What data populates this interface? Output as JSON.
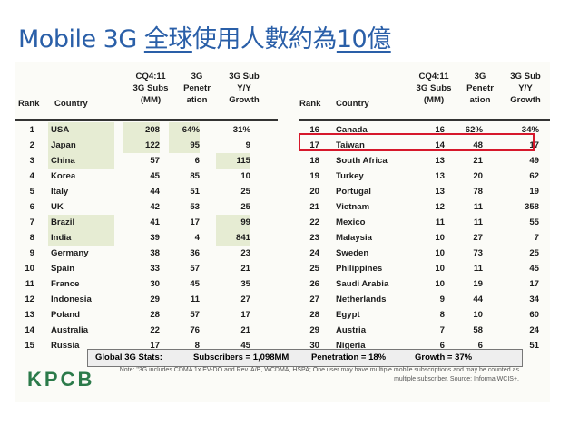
{
  "slide_title": {
    "prefix": "Mobile 3G ",
    "underlined_1": "全球",
    "middle": "使用人數約為",
    "underlined_2": "10億"
  },
  "left_header": {
    "rank": "Rank",
    "country": "Country",
    "subs_1": "CQ4:11",
    "subs_2": "3G Subs",
    "subs_3": "(MM)",
    "pen_1": "3G",
    "pen_2": "Penetr",
    "pen_3": "ation",
    "growth_1": "3G Sub",
    "growth_2": "Y/Y",
    "growth_3": "Growth"
  },
  "right_header": {
    "rank": "Rank",
    "country": "Country",
    "subs_1": "CQ4:11",
    "subs_2": "3G Subs",
    "subs_3": "(MM)",
    "pen_1": "3G",
    "pen_2": "Penetr",
    "pen_3": "ation",
    "growth_1": "3G Sub",
    "growth_2": "Y/Y",
    "growth_3": "Growth"
  },
  "left_rows": [
    {
      "rank": "1",
      "country": "USA",
      "subs": "208",
      "pen": "64%",
      "growth": "31%"
    },
    {
      "rank": "2",
      "country": "Japan",
      "subs": "122",
      "pen": "95",
      "growth": "9"
    },
    {
      "rank": "3",
      "country": "China",
      "subs": "57",
      "pen": "6",
      "growth": "115"
    },
    {
      "rank": "4",
      "country": "Korea",
      "subs": "45",
      "pen": "85",
      "growth": "10"
    },
    {
      "rank": "5",
      "country": "Italy",
      "subs": "44",
      "pen": "51",
      "growth": "25"
    },
    {
      "rank": "6",
      "country": "UK",
      "subs": "42",
      "pen": "53",
      "growth": "25"
    },
    {
      "rank": "7",
      "country": "Brazil",
      "subs": "41",
      "pen": "17",
      "growth": "99"
    },
    {
      "rank": "8",
      "country": "India",
      "subs": "39",
      "pen": "4",
      "growth": "841"
    },
    {
      "rank": "9",
      "country": "Germany",
      "subs": "38",
      "pen": "36",
      "growth": "23"
    },
    {
      "rank": "10",
      "country": "Spain",
      "subs": "33",
      "pen": "57",
      "growth": "21"
    },
    {
      "rank": "11",
      "country": "France",
      "subs": "30",
      "pen": "45",
      "growth": "35"
    },
    {
      "rank": "12",
      "country": "Indonesia",
      "subs": "29",
      "pen": "11",
      "growth": "27"
    },
    {
      "rank": "13",
      "country": "Poland",
      "subs": "28",
      "pen": "57",
      "growth": "17"
    },
    {
      "rank": "14",
      "country": "Australia",
      "subs": "22",
      "pen": "76",
      "growth": "21"
    },
    {
      "rank": "15",
      "country": "Russia",
      "subs": "17",
      "pen": "8",
      "growth": "45"
    }
  ],
  "right_rows": [
    {
      "rank": "16",
      "country": "Canada",
      "subs": "16",
      "pen": "62%",
      "growth": "34%"
    },
    {
      "rank": "17",
      "country": "Taiwan",
      "subs": "14",
      "pen": "48",
      "growth": "17"
    },
    {
      "rank": "18",
      "country": "South Africa",
      "subs": "13",
      "pen": "21",
      "growth": "49"
    },
    {
      "rank": "19",
      "country": "Turkey",
      "subs": "13",
      "pen": "20",
      "growth": "62"
    },
    {
      "rank": "20",
      "country": "Portugal",
      "subs": "13",
      "pen": "78",
      "growth": "19"
    },
    {
      "rank": "21",
      "country": "Vietnam",
      "subs": "12",
      "pen": "11",
      "growth": "358"
    },
    {
      "rank": "22",
      "country": "Mexico",
      "subs": "11",
      "pen": "11",
      "growth": "55"
    },
    {
      "rank": "23",
      "country": "Malaysia",
      "subs": "10",
      "pen": "27",
      "growth": "7"
    },
    {
      "rank": "24",
      "country": "Sweden",
      "subs": "10",
      "pen": "73",
      "growth": "25"
    },
    {
      "rank": "25",
      "country": "Philippines",
      "subs": "10",
      "pen": "11",
      "growth": "45"
    },
    {
      "rank": "26",
      "country": "Saudi Arabia",
      "subs": "10",
      "pen": "19",
      "growth": "17"
    },
    {
      "rank": "27",
      "country": "Netherlands",
      "subs": "9",
      "pen": "44",
      "growth": "34"
    },
    {
      "rank": "28",
      "country": "Egypt",
      "subs": "8",
      "pen": "10",
      "growth": "60"
    },
    {
      "rank": "29",
      "country": "Austria",
      "subs": "7",
      "pen": "58",
      "growth": "24"
    },
    {
      "rank": "30",
      "country": "Nigeria",
      "subs": "6",
      "pen": "6",
      "growth": "51"
    }
  ],
  "stats": {
    "label": "Global 3G Stats:",
    "subscribers": "Subscribers = 1,098MM",
    "penetration": "Penetration = 18%",
    "growth": "Growth = 37%"
  },
  "logo": "KPCB",
  "note_line_1": "Note: \"3G includes CDMA 1x EV-DO and Rev. A/B, WCDMA, HSPA; One user may have multiple mobile subscriptions and may be counted as",
  "note_line_2": "multiple subscriber. Source: Informa WCIS+.",
  "colors": {
    "title": "#2a5fa8",
    "highlight": "#e6ecd3",
    "red_box": "#d6182b",
    "logo": "#2b7a4a"
  }
}
